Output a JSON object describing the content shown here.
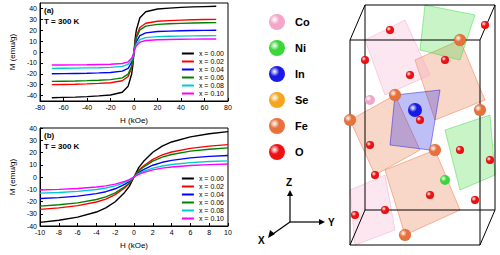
{
  "chart_data": [
    {
      "type": "line",
      "title": "T = 300 K",
      "annotations": [
        "(a)"
      ],
      "xlabel": "H (kOe)",
      "ylabel": "M (emu/g)",
      "x": [
        -70,
        -60,
        -50,
        -40,
        -30,
        -20,
        -10,
        -5,
        -2,
        -1,
        0,
        1,
        2,
        5,
        10,
        20,
        30,
        40,
        50,
        60,
        70
      ],
      "series": [
        {
          "name": "x = 0.00",
          "color": "#000000",
          "values": [
            -42,
            -41.7,
            -41.4,
            -41,
            -40.3,
            -39.5,
            -37,
            -31.5,
            -20.2,
            -12.6,
            0,
            12.6,
            20.2,
            31.5,
            37,
            39.5,
            40.3,
            41,
            41.4,
            41.7,
            42
          ]
        },
        {
          "name": "x = 0.02",
          "color": "#ff0000",
          "values": [
            -30,
            -29.8,
            -29.6,
            -29.3,
            -28.8,
            -28.2,
            -26.4,
            -22.5,
            -14.4,
            -9,
            0,
            9,
            14.4,
            22.5,
            26.4,
            28.2,
            28.8,
            29.3,
            29.6,
            29.8,
            30
          ]
        },
        {
          "name": "x = 0.04",
          "color": "#0000ff",
          "values": [
            -20,
            -19.9,
            -19.7,
            -19.5,
            -19.2,
            -18.8,
            -17.6,
            -15,
            -9.6,
            -6,
            0,
            6,
            9.6,
            15,
            17.6,
            18.8,
            19.2,
            19.5,
            19.7,
            19.9,
            20
          ]
        },
        {
          "name": "x = 0.06",
          "color": "#008000",
          "values": [
            -27,
            -26.8,
            -26.6,
            -26.3,
            -25.9,
            -25.4,
            -23.8,
            -20.3,
            -13,
            -8.1,
            0,
            8.1,
            13,
            20.3,
            23.8,
            25.4,
            25.9,
            26.3,
            26.6,
            26.8,
            27
          ]
        },
        {
          "name": "x = 0.08",
          "color": "#00cccc",
          "values": [
            -15,
            -14.9,
            -14.8,
            -14.6,
            -14.4,
            -14.1,
            -13.2,
            -11.3,
            -7.2,
            -4.5,
            0,
            4.5,
            7.2,
            11.3,
            13.2,
            14.1,
            14.4,
            14.6,
            14.8,
            14.9,
            15
          ]
        },
        {
          "name": "x = 0.10",
          "color": "#ff00ff",
          "values": [
            -12,
            -11.9,
            -11.8,
            -11.7,
            -11.5,
            -11.3,
            -10.6,
            -9,
            -5.8,
            -3.6,
            0,
            3.6,
            5.8,
            9,
            10.6,
            11.3,
            11.5,
            11.7,
            11.8,
            11.9,
            12
          ]
        }
      ],
      "xlim": [
        -80,
        80
      ],
      "xticks": [
        -80,
        -60,
        -40,
        -20,
        0,
        20,
        40,
        60,
        80
      ],
      "ylim": [
        -45,
        45
      ],
      "yticks": [
        -40,
        -30,
        -20,
        -10,
        0,
        10,
        20,
        30,
        40
      ],
      "grid": false,
      "legend": "lower right"
    },
    {
      "type": "line",
      "title": "T = 300 K",
      "annotations": [
        "(b)"
      ],
      "xlabel": "H (kOe)",
      "ylabel": "M (emu/g)",
      "x": [
        -10,
        -8,
        -6,
        -4,
        -3,
        -2,
        -1,
        -0.5,
        0,
        0.5,
        1,
        2,
        3,
        4,
        6,
        8,
        10
      ],
      "series": [
        {
          "name": "x = 0.00",
          "color": "#000000",
          "values": [
            -37,
            -35.3,
            -32.8,
            -28.6,
            -25.2,
            -20.2,
            -12.6,
            -7.6,
            0,
            7.6,
            12.6,
            20.2,
            25.2,
            28.6,
            32.8,
            35.3,
            37
          ]
        },
        {
          "name": "x = 0.02",
          "color": "#ff0000",
          "values": [
            -26.4,
            -25.2,
            -23.4,
            -20.4,
            -18,
            -14.4,
            -9,
            -5.4,
            0,
            5.4,
            9,
            14.4,
            18,
            20.4,
            23.4,
            25.2,
            26.4
          ]
        },
        {
          "name": "x = 0.04",
          "color": "#0000ff",
          "values": [
            -17.6,
            -16.8,
            -15.6,
            -13.6,
            -12,
            -9.6,
            -6,
            -3.6,
            0,
            3.6,
            6,
            9.6,
            12,
            13.6,
            15.6,
            16.8,
            17.6
          ]
        },
        {
          "name": "x = 0.06",
          "color": "#008000",
          "values": [
            -23.8,
            -22.7,
            -21.1,
            -18.4,
            -16.2,
            -13,
            -8.1,
            -4.9,
            0,
            4.9,
            8.1,
            13,
            16.2,
            18.4,
            21.1,
            22.7,
            23.8
          ]
        },
        {
          "name": "x = 0.08",
          "color": "#00cccc",
          "values": [
            -13.2,
            -12.6,
            -11.7,
            -10.2,
            -9,
            -7.2,
            -4.5,
            -2.7,
            0,
            2.7,
            4.5,
            7.2,
            9,
            10.2,
            11.7,
            12.6,
            13.2
          ]
        },
        {
          "name": "x = 0.10",
          "color": "#ff00ff",
          "values": [
            -10.6,
            -10.1,
            -9.4,
            -8.2,
            -7.2,
            -5.8,
            -3.6,
            -2.2,
            0,
            2.2,
            3.6,
            5.8,
            7.2,
            8.2,
            9.4,
            10.1,
            10.6
          ]
        }
      ],
      "xlim": [
        -10,
        10
      ],
      "xticks": [
        -10,
        -8,
        -6,
        -4,
        -2,
        0,
        2,
        4,
        6,
        8,
        10
      ],
      "ylim": [
        -40,
        40
      ],
      "yticks": [
        -40,
        -30,
        -20,
        -10,
        0,
        10,
        20,
        30,
        40
      ],
      "grid": false,
      "legend": "lower right"
    }
  ],
  "structure": {
    "legend": [
      {
        "label": "Co",
        "color": "#f4a6c8"
      },
      {
        "label": "Ni",
        "color": "#3ad63a"
      },
      {
        "label": "In",
        "color": "#1a1ae6"
      },
      {
        "label": "Se",
        "color": "#f5a51e"
      },
      {
        "label": "Fe",
        "color": "#e8703a"
      },
      {
        "label": "O",
        "color": "#ee1111"
      }
    ],
    "axes": [
      "Z",
      "X",
      "Y"
    ]
  }
}
